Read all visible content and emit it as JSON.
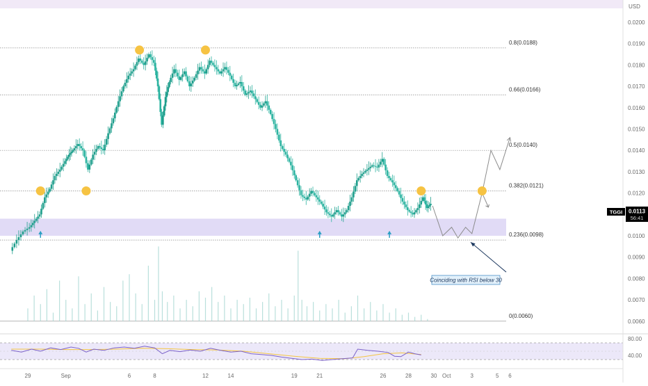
{
  "header": {
    "currency": "USD"
  },
  "ticker": {
    "symbol": "TGGI",
    "price": "0.0113",
    "countdown": "56:41"
  },
  "annotation": {
    "text": "Coinciding with RSI below 30"
  },
  "colors": {
    "up": "#26a69a",
    "down": "#26a69a",
    "candle_up": "#1e9e8c",
    "candle_down": "#2bb3a0",
    "zone": "#dcd5f5",
    "marker": "#f6c343",
    "forecast": "#8c8c8c",
    "rsi_line": "#7b61c9",
    "rsi_ma": "#f4c542",
    "rsi_band": "#ece8f9",
    "volume": "#b9dfdb",
    "top_band": "#f1e9f7"
  },
  "chart_data": {
    "type": "candlestick",
    "price_axis": {
      "label": "USD",
      "ticks": [
        "0.0200",
        "0.0190",
        "0.0180",
        "0.0170",
        "0.0160",
        "0.0150",
        "0.0140",
        "0.0130",
        "0.0120",
        "0.0110",
        "0.0100",
        "0.0090",
        "0.0080",
        "0.0070",
        "0.0060"
      ],
      "ylim": [
        0.0058,
        0.0205
      ]
    },
    "time_axis": {
      "ticks": [
        {
          "label": "29",
          "day": 0
        },
        {
          "label": "Sep",
          "day": 3
        },
        {
          "label": "6",
          "day": 8
        },
        {
          "label": "8",
          "day": 10
        },
        {
          "label": "12",
          "day": 14
        },
        {
          "label": "14",
          "day": 16
        },
        {
          "label": "19",
          "day": 21
        },
        {
          "label": "21",
          "day": 23
        },
        {
          "label": "26",
          "day": 28
        },
        {
          "label": "28",
          "day": 30
        },
        {
          "label": "30",
          "day": 32
        },
        {
          "label": "Oct",
          "day": 33
        },
        {
          "label": "3",
          "day": 35
        },
        {
          "label": "5",
          "day": 37
        },
        {
          "label": "6",
          "day": 38
        }
      ]
    },
    "fib_levels": [
      {
        "label": "0.8(0.0188)",
        "value": 0.0188
      },
      {
        "label": "0.66(0.0166)",
        "value": 0.0166
      },
      {
        "label": "0.5(0.0140)",
        "value": 0.014
      },
      {
        "label": "0.382(0.0121)",
        "value": 0.0121
      },
      {
        "label": "0.236(0.0098)",
        "value": 0.0098
      },
      {
        "label": "0(0.0060)",
        "value": 0.006
      }
    ],
    "support_zone": [
      0.01,
      0.0108
    ],
    "price_path": [
      [
        -1.3,
        0.0093
      ],
      [
        -0.8,
        0.0098
      ],
      [
        -0.3,
        0.0102
      ],
      [
        0.2,
        0.0104
      ],
      [
        0.6,
        0.0107
      ],
      [
        1.0,
        0.011
      ],
      [
        1.4,
        0.0118
      ],
      [
        1.8,
        0.0122
      ],
      [
        2.2,
        0.0128
      ],
      [
        2.6,
        0.0131
      ],
      [
        3.0,
        0.0135
      ],
      [
        3.3,
        0.0138
      ],
      [
        3.6,
        0.014
      ],
      [
        4.0,
        0.0143
      ],
      [
        4.4,
        0.014
      ],
      [
        4.8,
        0.0131
      ],
      [
        5.2,
        0.0138
      ],
      [
        5.6,
        0.0142
      ],
      [
        6.0,
        0.014
      ],
      [
        6.4,
        0.0148
      ],
      [
        6.8,
        0.0155
      ],
      [
        7.2,
        0.0163
      ],
      [
        7.6,
        0.017
      ],
      [
        8.0,
        0.0175
      ],
      [
        8.4,
        0.0178
      ],
      [
        8.8,
        0.0183
      ],
      [
        9.2,
        0.018
      ],
      [
        9.6,
        0.0185
      ],
      [
        10.0,
        0.0181
      ],
      [
        10.3,
        0.017
      ],
      [
        10.6,
        0.0152
      ],
      [
        10.9,
        0.0165
      ],
      [
        11.2,
        0.0172
      ],
      [
        11.6,
        0.0178
      ],
      [
        12.0,
        0.0173
      ],
      [
        12.4,
        0.0177
      ],
      [
        12.8,
        0.017
      ],
      [
        13.2,
        0.0174
      ],
      [
        13.6,
        0.0179
      ],
      [
        14.0,
        0.0176
      ],
      [
        14.4,
        0.0182
      ],
      [
        14.8,
        0.0179
      ],
      [
        15.2,
        0.0176
      ],
      [
        15.6,
        0.0179
      ],
      [
        16.0,
        0.0175
      ],
      [
        16.4,
        0.017
      ],
      [
        16.8,
        0.0172
      ],
      [
        17.2,
        0.0166
      ],
      [
        17.6,
        0.0168
      ],
      [
        18.0,
        0.0164
      ],
      [
        18.4,
        0.016
      ],
      [
        18.8,
        0.0163
      ],
      [
        19.2,
        0.0157
      ],
      [
        19.6,
        0.015
      ],
      [
        20.0,
        0.0142
      ],
      [
        20.4,
        0.0138
      ],
      [
        20.8,
        0.0133
      ],
      [
        21.2,
        0.0126
      ],
      [
        21.6,
        0.0119
      ],
      [
        22.0,
        0.0117
      ],
      [
        22.4,
        0.0121
      ],
      [
        22.8,
        0.0118
      ],
      [
        23.2,
        0.0115
      ],
      [
        23.6,
        0.0111
      ],
      [
        24.0,
        0.0109
      ],
      [
        24.4,
        0.0112
      ],
      [
        24.8,
        0.0109
      ],
      [
        25.2,
        0.0112
      ],
      [
        25.6,
        0.0118
      ],
      [
        26.0,
        0.0126
      ],
      [
        26.4,
        0.0129
      ],
      [
        26.8,
        0.0131
      ],
      [
        27.2,
        0.0133
      ],
      [
        27.6,
        0.0132
      ],
      [
        28.0,
        0.0136
      ],
      [
        28.4,
        0.0128
      ],
      [
        28.8,
        0.0125
      ],
      [
        29.2,
        0.0121
      ],
      [
        29.6,
        0.0116
      ],
      [
        30.0,
        0.0112
      ],
      [
        30.4,
        0.011
      ],
      [
        30.8,
        0.0113
      ],
      [
        31.2,
        0.0118
      ],
      [
        31.5,
        0.0113
      ],
      [
        31.8,
        0.0115
      ]
    ],
    "markers": [
      {
        "day": 1.0,
        "value": 0.0121
      },
      {
        "day": 4.6,
        "value": 0.0121
      },
      {
        "day": 8.8,
        "value": 0.0187
      },
      {
        "day": 14.0,
        "value": 0.0187
      },
      {
        "day": 31.0,
        "value": 0.0121
      },
      {
        "day": 35.8,
        "value": 0.0121
      }
    ],
    "support_arrows": [
      {
        "day": 1.0,
        "value": 0.0101
      },
      {
        "day": 23.0,
        "value": 0.0101
      },
      {
        "day": 28.5,
        "value": 0.0101
      }
    ],
    "forecast_path": [
      [
        31.9,
        0.0114
      ],
      [
        32.7,
        0.01
      ],
      [
        33.4,
        0.0104
      ],
      [
        33.9,
        0.0099
      ],
      [
        34.5,
        0.0104
      ],
      [
        35.0,
        0.0101
      ],
      [
        35.8,
        0.012
      ],
      [
        36.5,
        0.014
      ],
      [
        37.2,
        0.0131
      ],
      [
        38.0,
        0.0146
      ]
    ],
    "forecast_branch": [
      [
        35.8,
        0.012
      ],
      [
        36.3,
        0.0116
      ]
    ],
    "annotation_arrow": {
      "from": [
        37.7,
        0.0083
      ],
      "to": [
        34.9,
        0.0097
      ]
    },
    "volume": {
      "baseline_value": 0.006,
      "bars": [
        [
          0,
          0.0066
        ],
        [
          0.5,
          0.0072
        ],
        [
          1,
          0.0068
        ],
        [
          1.5,
          0.0075
        ],
        [
          2,
          0.0064
        ],
        [
          2.5,
          0.0079
        ],
        [
          3,
          0.007
        ],
        [
          3.5,
          0.0066
        ],
        [
          4,
          0.0081
        ],
        [
          4.5,
          0.0068
        ],
        [
          5,
          0.0073
        ],
        [
          5.5,
          0.0065
        ],
        [
          6,
          0.0076
        ],
        [
          6.5,
          0.0069
        ],
        [
          7,
          0.0067
        ],
        [
          7.5,
          0.0079
        ],
        [
          8,
          0.0082
        ],
        [
          8.5,
          0.0073
        ],
        [
          9,
          0.0068
        ],
        [
          9.5,
          0.0086
        ],
        [
          10,
          0.007
        ],
        [
          10.3,
          0.0095
        ],
        [
          10.6,
          0.0074
        ],
        [
          11,
          0.0069
        ],
        [
          11.5,
          0.0072
        ],
        [
          12,
          0.0066
        ],
        [
          12.5,
          0.007
        ],
        [
          13,
          0.0067
        ],
        [
          13.5,
          0.0074
        ],
        [
          14,
          0.0071
        ],
        [
          14.5,
          0.0076
        ],
        [
          15,
          0.0069
        ],
        [
          15.5,
          0.0072
        ],
        [
          16,
          0.0066
        ],
        [
          16.5,
          0.007
        ],
        [
          17,
          0.0068
        ],
        [
          17.5,
          0.0071
        ],
        [
          18,
          0.0066
        ],
        [
          18.5,
          0.0069
        ],
        [
          19,
          0.0073
        ],
        [
          19.5,
          0.0067
        ],
        [
          20,
          0.007
        ],
        [
          20.5,
          0.0066
        ],
        [
          21,
          0.0072
        ],
        [
          21.3,
          0.0093
        ],
        [
          21.6,
          0.007
        ],
        [
          22,
          0.0067
        ],
        [
          22.5,
          0.0069
        ],
        [
          23,
          0.0065
        ],
        [
          23.5,
          0.0068
        ],
        [
          24,
          0.0066
        ],
        [
          24.5,
          0.007
        ],
        [
          25,
          0.0064
        ],
        [
          25.5,
          0.0067
        ],
        [
          26,
          0.0072
        ],
        [
          26.5,
          0.0066
        ],
        [
          27,
          0.0069
        ],
        [
          27.5,
          0.0065
        ],
        [
          28,
          0.0068
        ],
        [
          28.5,
          0.0064
        ],
        [
          29,
          0.0066
        ],
        [
          29.5,
          0.0063
        ],
        [
          30,
          0.0064
        ],
        [
          30.5,
          0.0062
        ],
        [
          31,
          0.0063
        ],
        [
          31.5,
          0.0061
        ]
      ]
    },
    "rsi": {
      "ticks": [
        "80.00",
        "40.00"
      ],
      "ylim": [
        15,
        85
      ],
      "band": [
        30,
        70
      ],
      "line": [
        [
          -1.3,
          52
        ],
        [
          -0.5,
          48
        ],
        [
          0.3,
          55
        ],
        [
          1.0,
          50
        ],
        [
          1.8,
          58
        ],
        [
          2.6,
          54
        ],
        [
          3.4,
          60
        ],
        [
          4.0,
          57
        ],
        [
          4.6,
          48
        ],
        [
          5.2,
          55
        ],
        [
          6.0,
          52
        ],
        [
          6.8,
          58
        ],
        [
          7.6,
          60
        ],
        [
          8.4,
          57
        ],
        [
          9.2,
          62
        ],
        [
          10.0,
          58
        ],
        [
          10.6,
          44
        ],
        [
          11.2,
          52
        ],
        [
          12.0,
          49
        ],
        [
          12.8,
          53
        ],
        [
          13.6,
          50
        ],
        [
          14.4,
          57
        ],
        [
          15.2,
          52
        ],
        [
          16.0,
          48
        ],
        [
          16.8,
          50
        ],
        [
          17.6,
          44
        ],
        [
          18.4,
          42
        ],
        [
          19.2,
          40
        ],
        [
          20.0,
          36
        ],
        [
          20.8,
          33
        ],
        [
          21.6,
          30
        ],
        [
          22.4,
          31
        ],
        [
          23.2,
          28
        ],
        [
          24.0,
          30
        ],
        [
          24.8,
          32
        ],
        [
          25.6,
          34
        ],
        [
          26.0,
          55
        ],
        [
          26.8,
          52
        ],
        [
          27.6,
          50
        ],
        [
          28.4,
          47
        ],
        [
          28.9,
          38
        ],
        [
          29.4,
          37
        ],
        [
          30.0,
          48
        ],
        [
          30.5,
          44
        ],
        [
          31.0,
          41
        ]
      ],
      "ma": [
        [
          -1.3,
          55
        ],
        [
          1.0,
          55
        ],
        [
          3.0,
          54
        ],
        [
          5.0,
          54
        ],
        [
          7.0,
          55
        ],
        [
          9.0,
          57
        ],
        [
          11.0,
          56
        ],
        [
          13.0,
          54
        ],
        [
          15.0,
          53
        ],
        [
          17.0,
          50
        ],
        [
          19.0,
          44
        ],
        [
          21.0,
          38
        ],
        [
          23.0,
          33
        ],
        [
          25.0,
          32
        ],
        [
          26.5,
          37
        ],
        [
          28.0,
          44
        ],
        [
          29.5,
          46
        ],
        [
          31.0,
          42
        ]
      ]
    }
  }
}
